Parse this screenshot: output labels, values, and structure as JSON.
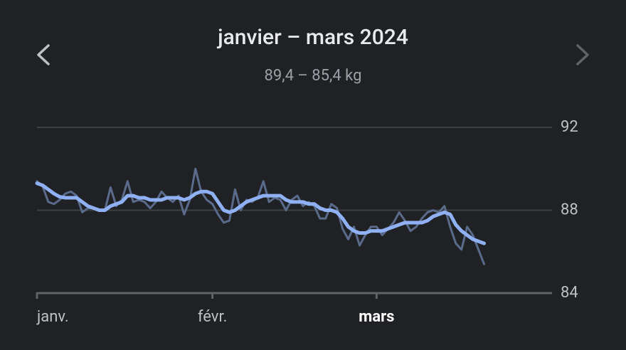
{
  "chart_data": {
    "type": "line",
    "title": "janvier – mars 2024",
    "subtitle": "89,4 – 85,4 kg",
    "x": [
      0,
      1,
      2,
      3,
      4,
      5,
      6,
      7,
      8,
      9,
      10,
      11,
      12,
      13,
      14,
      15,
      16,
      17,
      18,
      19,
      20,
      21,
      22,
      23,
      24,
      25,
      26,
      27,
      28,
      29,
      30,
      31,
      32,
      33,
      34,
      35,
      36,
      37,
      38,
      39,
      40,
      41,
      42,
      43,
      44,
      45,
      46,
      47,
      48,
      49,
      50,
      51,
      52,
      53,
      54,
      55,
      56,
      57,
      58,
      59,
      60,
      61,
      62,
      63,
      64,
      65,
      66,
      67,
      68,
      69,
      70,
      71,
      72,
      73,
      74,
      75,
      76,
      77,
      78,
      79
    ],
    "xlim": [
      0,
      91
    ],
    "xticks": [
      {
        "value": 0,
        "label": "janv."
      },
      {
        "value": 31,
        "label": "févr."
      },
      {
        "value": 60,
        "label": "mars"
      }
    ],
    "ylim": [
      84,
      92
    ],
    "yticks": [
      84,
      88,
      92
    ],
    "grid": true,
    "series": [
      {
        "color": "#5a6a8a",
        "values": [
          89.4,
          89.15,
          88.4,
          88.3,
          88.5,
          88.8,
          88.9,
          88.7,
          87.9,
          88.1,
          88.1,
          88.0,
          88.0,
          89.1,
          88.2,
          88.5,
          89.4,
          88.4,
          88.5,
          88.4,
          88.1,
          88.4,
          88.9,
          88.6,
          88.4,
          88.7,
          87.8,
          88.5,
          90.0,
          88.9,
          88.5,
          88.3,
          87.8,
          87.4,
          87.5,
          89.0,
          88.0,
          88.5,
          88.4,
          88.6,
          89.4,
          88.4,
          88.6,
          88.5,
          88.0,
          88.5,
          88.7,
          88.2,
          88.4,
          88.2,
          87.6,
          87.6,
          88.3,
          88.1,
          87.1,
          86.6,
          87.2,
          86.3,
          86.8,
          87.2,
          87.2,
          86.8,
          87.1,
          87.4,
          87.9,
          87.5,
          87.0,
          87.2,
          87.6,
          87.9,
          88.0,
          87.9,
          88.2,
          87.2,
          86.4,
          86.1,
          87.2,
          86.8,
          86.1,
          85.4
        ]
      },
      {
        "color": "#8fb1f4",
        "values": [
          89.3,
          89.2,
          89.0,
          88.8,
          88.65,
          88.6,
          88.6,
          88.6,
          88.4,
          88.2,
          88.1,
          88.0,
          88.0,
          88.2,
          88.3,
          88.4,
          88.7,
          88.7,
          88.6,
          88.6,
          88.5,
          88.5,
          88.5,
          88.6,
          88.6,
          88.6,
          88.5,
          88.6,
          88.8,
          88.9,
          88.9,
          88.8,
          88.4,
          88.0,
          87.9,
          88.0,
          88.2,
          88.4,
          88.5,
          88.6,
          88.7,
          88.7,
          88.7,
          88.7,
          88.5,
          88.4,
          88.4,
          88.4,
          88.3,
          88.3,
          88.1,
          88.0,
          88.0,
          87.9,
          87.6,
          87.2,
          87.0,
          86.9,
          86.9,
          87.0,
          87.0,
          87.0,
          87.1,
          87.2,
          87.3,
          87.4,
          87.4,
          87.4,
          87.4,
          87.5,
          87.7,
          87.8,
          87.9,
          87.8,
          87.3,
          87.0,
          86.8,
          86.6,
          86.5,
          86.4
        ]
      }
    ]
  }
}
